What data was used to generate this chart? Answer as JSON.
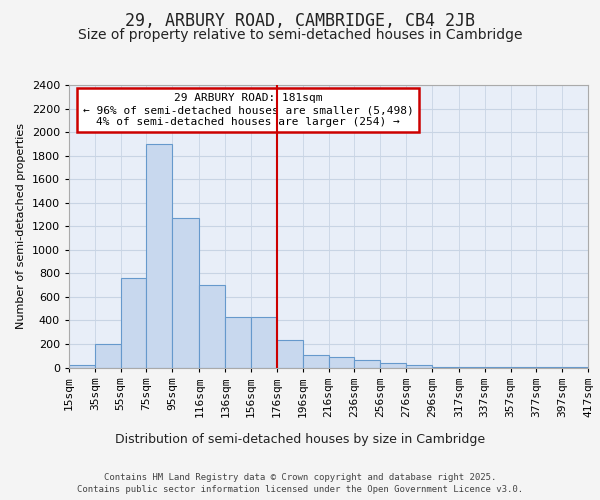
{
  "title": "29, ARBURY ROAD, CAMBRIDGE, CB4 2JB",
  "subtitle": "Size of property relative to semi-detached houses in Cambridge",
  "xlabel": "Distribution of semi-detached houses by size in Cambridge",
  "ylabel": "Number of semi-detached properties",
  "bin_labels": [
    "15sqm",
    "35sqm",
    "55sqm",
    "75sqm",
    "95sqm",
    "116sqm",
    "136sqm",
    "156sqm",
    "176sqm",
    "196sqm",
    "216sqm",
    "236sqm",
    "256sqm",
    "276sqm",
    "296sqm",
    "317sqm",
    "337sqm",
    "357sqm",
    "377sqm",
    "397sqm",
    "417sqm"
  ],
  "bin_edges": [
    15,
    35,
    55,
    75,
    95,
    116,
    136,
    156,
    176,
    196,
    216,
    236,
    256,
    276,
    296,
    317,
    337,
    357,
    377,
    397,
    417
  ],
  "bar_heights": [
    25,
    200,
    760,
    1900,
    1270,
    700,
    430,
    430,
    230,
    110,
    90,
    60,
    40,
    25,
    5,
    5,
    5,
    5,
    5,
    2
  ],
  "bar_color": "#c8d8ee",
  "bar_edge_color": "#6699cc",
  "vline_x": 176,
  "vline_color": "#cc0000",
  "ylim_max": 2400,
  "yticks": [
    0,
    200,
    400,
    600,
    800,
    1000,
    1200,
    1400,
    1600,
    1800,
    2000,
    2200,
    2400
  ],
  "grid_color": "#c8d4e4",
  "bg_color": "#e8eef8",
  "fig_bg_color": "#f4f4f4",
  "annotation_line1": "29 ARBURY ROAD: 181sqm",
  "annotation_line2": "← 96% of semi-detached houses are smaller (5,498)",
  "annotation_line3": "4% of semi-detached houses are larger (254) →",
  "ann_box_edge_color": "#cc0000",
  "footer_line1": "Contains HM Land Registry data © Crown copyright and database right 2025.",
  "footer_line2": "Contains public sector information licensed under the Open Government Licence v3.0.",
  "title_fontsize": 12,
  "subtitle_fontsize": 10,
  "xlabel_fontsize": 9,
  "ylabel_fontsize": 8,
  "tick_fontsize": 8,
  "ann_fontsize": 8,
  "footer_fontsize": 6.5
}
